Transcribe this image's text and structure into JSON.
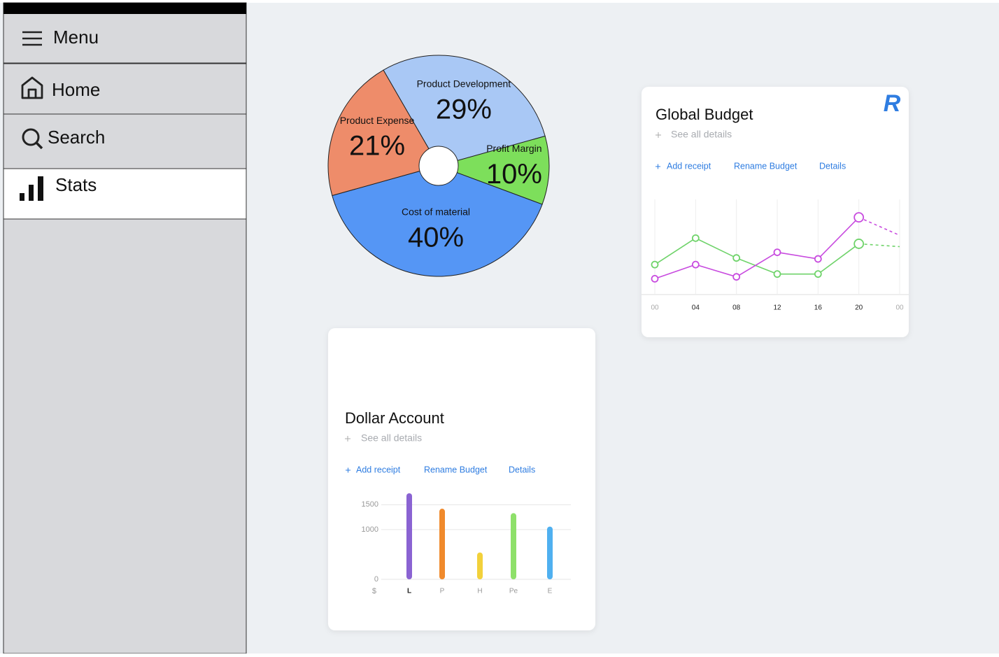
{
  "sidebar": {
    "menu": "Menu",
    "items": [
      "Home",
      "Search",
      "Stats"
    ]
  },
  "expenses_pie": {
    "type": "pie",
    "categories": [
      "Product Development",
      "Profit Margin",
      "Cost of material",
      "Product Expense"
    ],
    "values": [
      29,
      10,
      40,
      21
    ],
    "value_labels": [
      "29%",
      "10%",
      "40%",
      "21%"
    ],
    "colors": [
      "#a9c8f5",
      "#7ddf5b",
      "#5596f5",
      "#ee8c6a"
    ]
  },
  "global_budget": {
    "title": "Global Budget",
    "see_all": "See all details",
    "links": [
      "Add receipt",
      "Rename Budget",
      "Details"
    ],
    "logo": "R",
    "chart": {
      "type": "line",
      "categories": [
        "00",
        "04",
        "08",
        "12",
        "16",
        "20",
        "00"
      ],
      "ylim": [
        0,
        100
      ],
      "grid": true,
      "series": [
        {
          "color": "#6fd36a",
          "values": [
            31,
            59,
            38,
            21,
            21,
            53,
            50
          ]
        },
        {
          "color": "#c84bdf",
          "values": [
            16,
            31,
            18,
            44,
            37,
            81,
            62
          ]
        }
      ]
    }
  },
  "dollar_account": {
    "title": "Dollar Account",
    "see_all": "See all details",
    "links": [
      "Add receipt",
      "Rename Budget",
      "Details"
    ],
    "chart": {
      "type": "bar",
      "categories": [
        "L",
        "P",
        "H",
        "Pe",
        "E"
      ],
      "values": [
        1730,
        1420,
        540,
        1330,
        1060
      ],
      "colors": [
        "#8a63d2",
        "#f08a2c",
        "#f2d13b",
        "#8ee06a",
        "#4fb0f0"
      ],
      "ylim": [
        0,
        1800
      ],
      "yticks": [
        0,
        1000,
        1500
      ],
      "y_unit": "$",
      "grid": true
    }
  }
}
